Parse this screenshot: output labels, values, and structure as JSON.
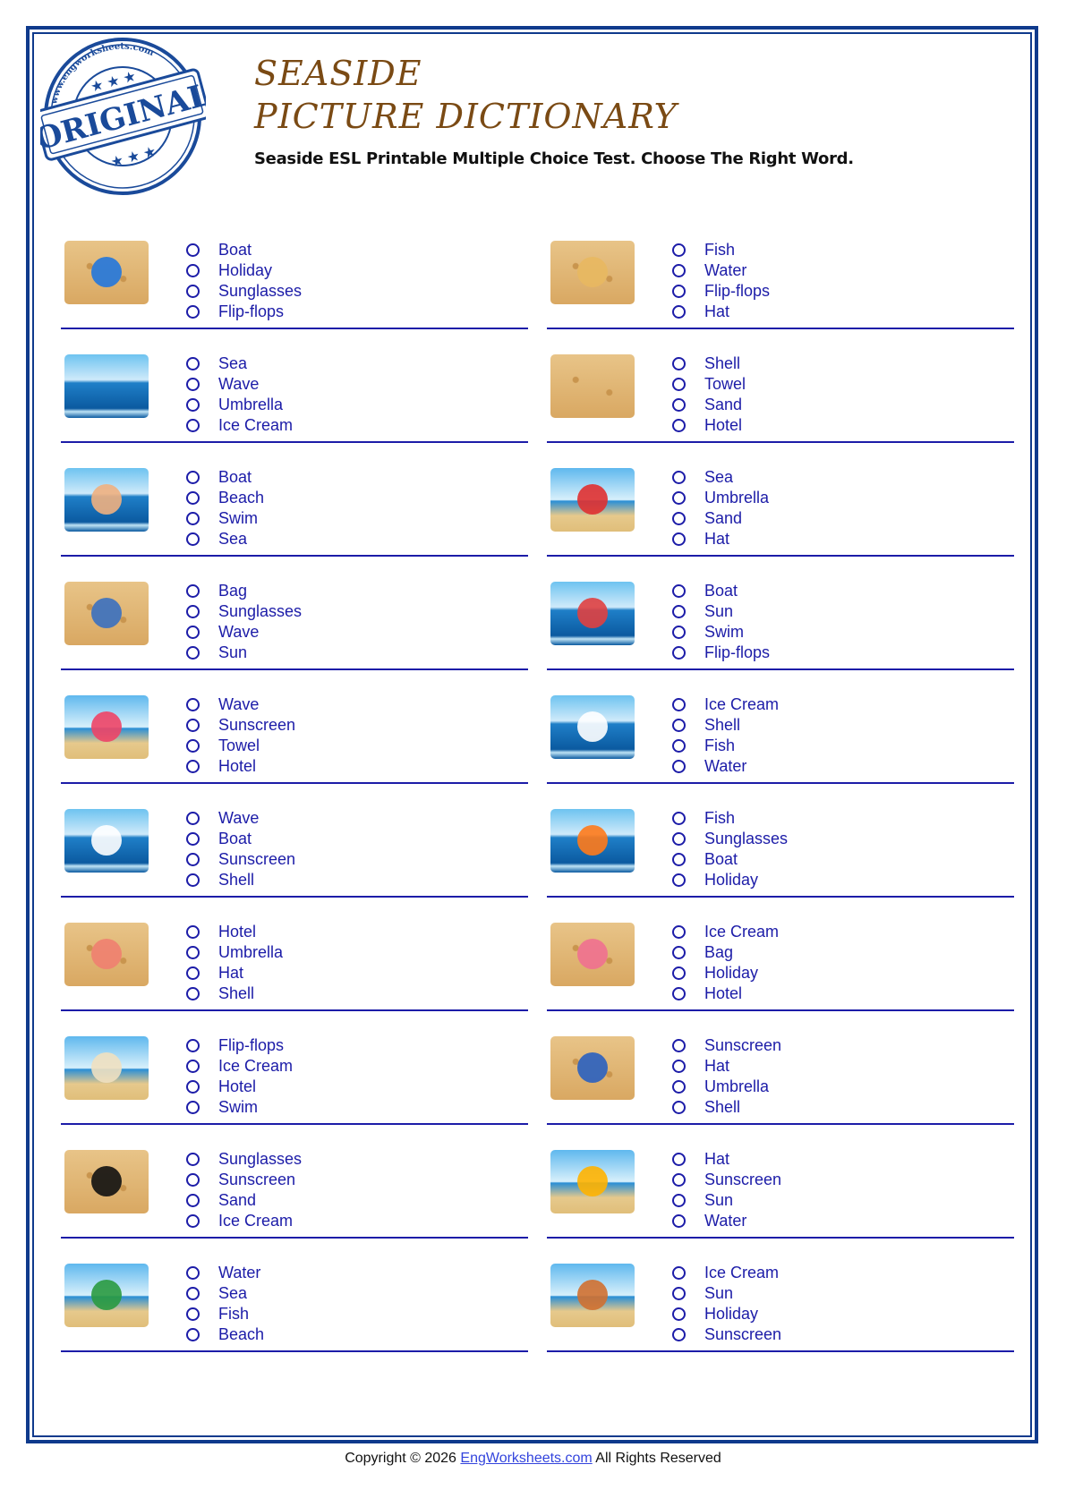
{
  "stamp": {
    "text": "ORIGINAL",
    "ring_text": "www.engworksheets.com",
    "color": "#1a4a9a"
  },
  "header": {
    "title_line1": "SEASIDE",
    "title_line2": "PICTURE DICTIONARY",
    "subtitle": "Seaside ESL Printable Multiple Choice Test. Choose The Right Word."
  },
  "colors": {
    "border": "#0f3a8c",
    "option_text": "#1c1ca8",
    "title": "#7a4a14"
  },
  "questions": [
    {
      "picture": "flip-flops",
      "options": [
        "Boat",
        "Holiday",
        "Sunglasses",
        "Flip-flops"
      ]
    },
    {
      "picture": "hat",
      "options": [
        "Fish",
        "Water",
        "Flip-flops",
        "Hat"
      ]
    },
    {
      "picture": "sea",
      "options": [
        "Sea",
        "Wave",
        "Umbrella",
        "Ice Cream"
      ]
    },
    {
      "picture": "sand",
      "options": [
        "Shell",
        "Towel",
        "Sand",
        "Hotel"
      ]
    },
    {
      "picture": "swim",
      "options": [
        "Boat",
        "Beach",
        "Swim",
        "Sea"
      ]
    },
    {
      "picture": "umbrella",
      "options": [
        "Sea",
        "Umbrella",
        "Sand",
        "Hat"
      ]
    },
    {
      "picture": "bag",
      "options": [
        "Bag",
        "Sunglasses",
        "Wave",
        "Sun"
      ]
    },
    {
      "picture": "boat",
      "options": [
        "Boat",
        "Sun",
        "Swim",
        "Flip-flops"
      ]
    },
    {
      "picture": "towel",
      "options": [
        "Wave",
        "Sunscreen",
        "Towel",
        "Hotel"
      ]
    },
    {
      "picture": "water",
      "options": [
        "Ice Cream",
        "Shell",
        "Fish",
        "Water"
      ]
    },
    {
      "picture": "wave",
      "options": [
        "Wave",
        "Boat",
        "Sunscreen",
        "Shell"
      ]
    },
    {
      "picture": "fish",
      "options": [
        "Fish",
        "Sunglasses",
        "Boat",
        "Holiday"
      ]
    },
    {
      "picture": "shell",
      "options": [
        "Hotel",
        "Umbrella",
        "Hat",
        "Shell"
      ]
    },
    {
      "picture": "ice-cream",
      "options": [
        "Ice Cream",
        "Bag",
        "Holiday",
        "Hotel"
      ]
    },
    {
      "picture": "hotel",
      "options": [
        "Flip-flops",
        "Ice Cream",
        "Hotel",
        "Swim"
      ]
    },
    {
      "picture": "sunscreen",
      "options": [
        "Sunscreen",
        "Hat",
        "Umbrella",
        "Shell"
      ]
    },
    {
      "picture": "sunglasses",
      "options": [
        "Sunglasses",
        "Sunscreen",
        "Sand",
        "Ice Cream"
      ]
    },
    {
      "picture": "sun",
      "options": [
        "Hat",
        "Sunscreen",
        "Sun",
        "Water"
      ]
    },
    {
      "picture": "beach",
      "options": [
        "Water",
        "Sea",
        "Fish",
        "Beach"
      ]
    },
    {
      "picture": "holiday",
      "options": [
        "Ice Cream",
        "Sun",
        "Holiday",
        "Sunscreen"
      ]
    }
  ],
  "footer": {
    "prefix": "Copyright © 2026 ",
    "link": "EngWorksheets.com",
    "suffix": " All Rights Reserved"
  }
}
